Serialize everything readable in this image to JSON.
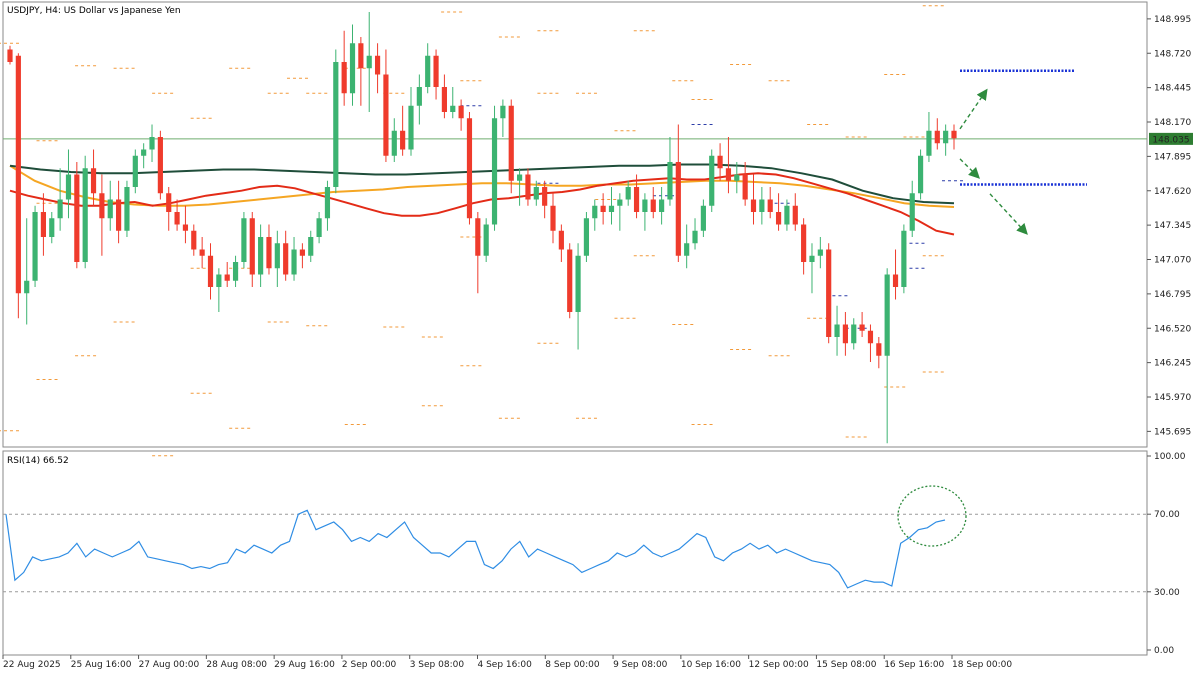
{
  "colors": {
    "bull": "#26a69a",
    "bull_fill": "#3cb371",
    "bear": "#ef3b2c",
    "grid": "#c8c8c8",
    "price_line": "#6fae6f",
    "price_tag_bg": "#2e7d32",
    "ma_fast": "#e32b17",
    "ma_mid": "#f5a623",
    "ma_slow": "#1f4d3a",
    "pivot": "#f29a3b",
    "pivot_blue": "#2d3da8",
    "target": "#1a33d6",
    "arrow": "#2e8b3e",
    "rsi": "#2f8de4",
    "rsi_level": "#9a9a9a"
  },
  "chart_data": [
    {
      "type": "candlestick",
      "title": "USDJPY, H4:  US Dollar vs Japanese Yen",
      "symbol": "USDJPY",
      "timeframe": "H4",
      "ylim": [
        145.57,
        149.13
      ],
      "y_ticks": [
        "148.995",
        "148.720",
        "148.445",
        "148.170",
        "147.895",
        "147.620",
        "147.345",
        "147.070",
        "146.795",
        "146.520",
        "146.245",
        "145.970",
        "145.695"
      ],
      "current_price": 148.035,
      "current_price_label": "148.035",
      "x_ticks": [
        "22 Aug 2025",
        "25 Aug 16:00",
        "27 Aug 00:00",
        "28 Aug 08:00",
        "29 Aug 16:00",
        "2 Sep 00:00",
        "3 Sep 08:00",
        "4 Sep 16:00",
        "8 Sep 00:00",
        "9 Sep 08:00",
        "10 Sep 16:00",
        "12 Sep 00:00",
        "15 Sep 08:00",
        "16 Sep 16:00",
        "18 Sep 00:00"
      ],
      "candles": [
        [
          148.75,
          148.78,
          148.63,
          148.65
        ],
        [
          148.7,
          148.72,
          146.6,
          146.8
        ],
        [
          146.8,
          147.4,
          146.55,
          146.9
        ],
        [
          146.9,
          147.5,
          146.85,
          147.45
        ],
        [
          147.45,
          147.6,
          147.1,
          147.25
        ],
        [
          147.25,
          147.45,
          147.2,
          147.4
        ],
        [
          147.4,
          147.8,
          147.3,
          147.55
        ],
        [
          147.55,
          147.95,
          147.4,
          147.75
        ],
        [
          147.75,
          147.85,
          147.0,
          147.05
        ],
        [
          147.05,
          147.9,
          147.0,
          147.8
        ],
        [
          147.8,
          147.95,
          147.5,
          147.6
        ],
        [
          147.6,
          147.75,
          147.1,
          147.4
        ],
        [
          147.4,
          147.7,
          147.3,
          147.55
        ],
        [
          147.55,
          147.7,
          147.2,
          147.3
        ],
        [
          147.3,
          147.7,
          147.25,
          147.65
        ],
        [
          147.65,
          147.95,
          147.6,
          147.9
        ],
        [
          147.9,
          148.0,
          147.8,
          147.95
        ],
        [
          147.95,
          148.15,
          147.85,
          148.05
        ],
        [
          148.05,
          148.1,
          147.55,
          147.6
        ],
        [
          147.6,
          147.65,
          147.3,
          147.45
        ],
        [
          147.45,
          147.55,
          147.3,
          147.35
        ],
        [
          147.35,
          147.5,
          147.2,
          147.3
        ],
        [
          147.3,
          147.35,
          147.1,
          147.15
        ],
        [
          147.15,
          147.25,
          147.0,
          147.1
        ],
        [
          147.1,
          147.2,
          146.75,
          146.85
        ],
        [
          146.85,
          147.0,
          146.65,
          146.95
        ],
        [
          146.95,
          147.05,
          146.85,
          146.9
        ],
        [
          146.9,
          147.1,
          146.85,
          147.05
        ],
        [
          147.05,
          147.45,
          147.0,
          147.4
        ],
        [
          147.4,
          147.45,
          146.85,
          146.95
        ],
        [
          146.95,
          147.35,
          146.85,
          147.25
        ],
        [
          147.25,
          147.35,
          146.95,
          147.0
        ],
        [
          147.0,
          147.3,
          146.85,
          147.2
        ],
        [
          147.2,
          147.3,
          146.9,
          146.95
        ],
        [
          146.95,
          147.25,
          146.9,
          147.15
        ],
        [
          147.15,
          147.2,
          147.0,
          147.1
        ],
        [
          147.1,
          147.3,
          147.05,
          147.25
        ],
        [
          147.25,
          147.45,
          147.2,
          147.4
        ],
        [
          147.4,
          147.7,
          147.3,
          147.65
        ],
        [
          147.65,
          148.75,
          147.6,
          148.65
        ],
        [
          148.65,
          148.9,
          148.3,
          148.4
        ],
        [
          148.4,
          148.95,
          148.3,
          148.8
        ],
        [
          148.8,
          148.85,
          148.3,
          148.6
        ],
        [
          148.6,
          149.05,
          148.25,
          148.7
        ],
        [
          148.7,
          148.8,
          148.4,
          148.55
        ],
        [
          148.55,
          148.75,
          147.85,
          147.9
        ],
        [
          147.9,
          148.2,
          147.85,
          148.1
        ],
        [
          148.1,
          148.3,
          147.9,
          147.95
        ],
        [
          147.95,
          148.45,
          147.9,
          148.3
        ],
        [
          148.3,
          148.55,
          148.15,
          148.45
        ],
        [
          148.45,
          148.8,
          148.4,
          148.7
        ],
        [
          148.7,
          148.75,
          148.35,
          148.45
        ],
        [
          148.45,
          148.55,
          148.2,
          148.25
        ],
        [
          148.25,
          148.45,
          148.2,
          148.3
        ],
        [
          148.3,
          148.35,
          148.1,
          148.2
        ],
        [
          148.2,
          148.25,
          147.35,
          147.4
        ],
        [
          147.4,
          147.45,
          146.8,
          147.1
        ],
        [
          147.1,
          147.4,
          147.05,
          147.35
        ],
        [
          147.35,
          148.3,
          147.3,
          148.2
        ],
        [
          148.2,
          148.35,
          148.05,
          148.3
        ],
        [
          148.3,
          148.35,
          147.6,
          147.7
        ],
        [
          147.7,
          147.8,
          147.5,
          147.75
        ],
        [
          147.75,
          147.8,
          147.5,
          147.55
        ],
        [
          147.55,
          147.7,
          147.5,
          147.65
        ],
        [
          147.65,
          147.7,
          147.4,
          147.5
        ],
        [
          147.5,
          147.6,
          147.2,
          147.3
        ],
        [
          147.3,
          147.35,
          147.05,
          147.15
        ],
        [
          147.15,
          147.2,
          146.6,
          146.65
        ],
        [
          146.65,
          147.2,
          146.35,
          147.1
        ],
        [
          147.1,
          147.45,
          147.05,
          147.4
        ],
        [
          147.4,
          147.55,
          147.3,
          147.5
        ],
        [
          147.5,
          147.6,
          147.35,
          147.45
        ],
        [
          147.45,
          147.65,
          147.35,
          147.5
        ],
        [
          147.5,
          147.6,
          147.3,
          147.55
        ],
        [
          147.55,
          147.7,
          147.5,
          147.65
        ],
        [
          147.65,
          147.75,
          147.4,
          147.45
        ],
        [
          147.45,
          147.6,
          147.3,
          147.55
        ],
        [
          147.55,
          147.65,
          147.4,
          147.45
        ],
        [
          147.45,
          147.65,
          147.35,
          147.55
        ],
        [
          147.55,
          148.05,
          147.5,
          147.85
        ],
        [
          147.85,
          148.15,
          147.05,
          147.1
        ],
        [
          147.1,
          147.35,
          147.0,
          147.2
        ],
        [
          147.2,
          147.4,
          147.15,
          147.3
        ],
        [
          147.3,
          147.55,
          147.25,
          147.5
        ],
        [
          147.5,
          147.95,
          147.45,
          147.9
        ],
        [
          147.9,
          148.0,
          147.7,
          147.8
        ],
        [
          147.8,
          148.05,
          147.6,
          147.7
        ],
        [
          147.7,
          147.85,
          147.6,
          147.75
        ],
        [
          147.75,
          147.85,
          147.5,
          147.55
        ],
        [
          147.55,
          147.75,
          147.35,
          147.45
        ],
        [
          147.45,
          147.65,
          147.35,
          147.55
        ],
        [
          147.55,
          147.65,
          147.4,
          147.45
        ],
        [
          147.45,
          147.6,
          147.3,
          147.35
        ],
        [
          147.35,
          147.55,
          147.3,
          147.5
        ],
        [
          147.5,
          147.6,
          147.3,
          147.35
        ],
        [
          147.35,
          147.4,
          146.95,
          147.05
        ],
        [
          147.05,
          147.2,
          146.8,
          147.1
        ],
        [
          147.1,
          147.25,
          147.0,
          147.15
        ],
        [
          147.15,
          147.2,
          146.4,
          146.45
        ],
        [
          146.45,
          146.7,
          146.3,
          146.55
        ],
        [
          146.55,
          146.65,
          146.3,
          146.4
        ],
        [
          146.4,
          146.6,
          146.35,
          146.55
        ],
        [
          146.55,
          146.65,
          146.45,
          146.5
        ],
        [
          146.5,
          146.55,
          146.25,
          146.4
        ],
        [
          146.4,
          146.45,
          146.2,
          146.3
        ],
        [
          146.3,
          147.0,
          145.6,
          146.95
        ],
        [
          146.95,
          147.15,
          146.75,
          146.85
        ],
        [
          146.85,
          147.35,
          146.8,
          147.3
        ],
        [
          147.3,
          147.7,
          147.25,
          147.6
        ],
        [
          147.6,
          147.95,
          147.55,
          147.9
        ],
        [
          147.9,
          148.25,
          147.85,
          148.1
        ],
        [
          148.1,
          148.2,
          147.95,
          148.0
        ],
        [
          148.0,
          148.15,
          147.9,
          148.1
        ],
        [
          148.1,
          148.15,
          147.95,
          148.04
        ]
      ],
      "ma_fast": [
        147.62,
        147.58,
        147.55,
        147.52,
        147.5,
        147.5,
        147.52,
        147.53,
        147.5,
        147.52,
        147.55,
        147.58,
        147.6,
        147.62,
        147.65,
        147.66,
        147.64,
        147.6,
        147.56,
        147.52,
        147.48,
        147.44,
        147.42,
        147.42,
        147.44,
        147.48,
        147.52,
        147.55,
        147.56,
        147.58,
        147.6,
        147.61,
        147.63,
        147.66,
        147.68,
        147.7,
        147.71,
        147.72,
        147.71,
        147.71,
        147.73,
        147.75,
        147.76,
        147.75,
        147.72,
        147.68,
        147.64,
        147.6,
        147.55,
        147.5,
        147.45,
        147.38,
        147.3,
        147.27
      ],
      "ma_mid": [
        147.82,
        147.7,
        147.62,
        147.57,
        147.53,
        147.51,
        147.5,
        147.5,
        147.51,
        147.53,
        147.55,
        147.57,
        147.59,
        147.61,
        147.62,
        147.63,
        147.65,
        147.66,
        147.67,
        147.68,
        147.68,
        147.67,
        147.66,
        147.66,
        147.67,
        147.67,
        147.68,
        147.69,
        147.7,
        147.7,
        147.69,
        147.68,
        147.66,
        147.63,
        147.6,
        147.56,
        147.52,
        147.5,
        147.49
      ],
      "ma_slow": [
        147.82,
        147.79,
        147.77,
        147.76,
        147.76,
        147.77,
        147.78,
        147.79,
        147.79,
        147.78,
        147.77,
        147.76,
        147.75,
        147.75,
        147.76,
        147.77,
        147.78,
        147.79,
        147.8,
        147.81,
        147.82,
        147.82,
        147.83,
        147.83,
        147.82,
        147.8,
        147.76,
        147.71,
        147.62,
        147.56,
        147.53,
        147.52
      ],
      "pivots": [
        [
          0,
          148.8
        ],
        [
          0,
          145.7
        ],
        [
          2,
          148.02
        ],
        [
          2,
          147.52
        ],
        [
          2,
          146.11
        ],
        [
          4,
          148.62
        ],
        [
          4,
          146.3
        ],
        [
          6,
          148.6
        ],
        [
          6,
          146.57
        ],
        [
          8,
          148.4
        ],
        [
          8,
          145.5
        ],
        [
          10,
          148.2
        ],
        [
          10,
          147.0
        ],
        [
          10,
          146.0
        ],
        [
          12,
          148.6
        ],
        [
          12,
          147.0
        ],
        [
          12,
          145.72
        ],
        [
          14,
          148.4
        ],
        [
          14,
          146.57
        ],
        [
          15,
          148.52
        ],
        [
          16,
          148.4
        ],
        [
          16,
          146.54
        ],
        [
          18,
          148.6
        ],
        [
          18,
          145.75
        ],
        [
          20,
          148.4
        ],
        [
          20,
          146.53
        ],
        [
          22,
          146.45
        ],
        [
          22,
          145.9
        ],
        [
          23,
          149.05
        ],
        [
          24,
          148.5
        ],
        [
          24,
          147.25
        ],
        [
          24,
          146.22
        ],
        [
          26,
          148.85
        ],
        [
          26,
          145.8
        ],
        [
          28,
          148.9
        ],
        [
          28,
          148.4
        ],
        [
          28,
          146.4
        ],
        [
          30,
          148.4
        ],
        [
          30,
          145.8
        ],
        [
          31,
          147.55
        ],
        [
          32,
          148.1
        ],
        [
          32,
          146.6
        ],
        [
          33,
          148.9
        ],
        [
          33,
          147.1
        ],
        [
          35,
          148.5
        ],
        [
          35,
          146.55
        ],
        [
          36,
          148.35
        ],
        [
          36,
          145.75
        ],
        [
          38,
          148.63
        ],
        [
          38,
          146.35
        ],
        [
          40,
          148.5
        ],
        [
          40,
          146.3
        ],
        [
          42,
          148.15
        ],
        [
          42,
          146.6
        ],
        [
          44,
          148.05
        ],
        [
          44,
          145.65
        ],
        [
          46,
          148.55
        ],
        [
          46,
          146.05
        ],
        [
          47,
          148.05
        ],
        [
          48,
          149.1
        ],
        [
          48,
          146.17
        ],
        [
          48,
          147.1
        ]
      ],
      "pivots_blue": [
        [
          24,
          148.3
        ],
        [
          28,
          147.68
        ],
        [
          34,
          147.58
        ],
        [
          36,
          148.15
        ],
        [
          40,
          147.52
        ],
        [
          43,
          146.78
        ],
        [
          44,
          146.52
        ],
        [
          47,
          147.2
        ],
        [
          47,
          147.0
        ],
        [
          49,
          147.7
        ]
      ],
      "targets": [
        148.58,
        147.67
      ]
    },
    {
      "type": "line",
      "title": "RSI(14) 66.52",
      "ylim": [
        0,
        100
      ],
      "y_ticks": [
        "100.00",
        "70.00",
        "30.00",
        "0.00"
      ],
      "levels": [
        70,
        30
      ],
      "values": [
        70,
        36,
        40,
        48,
        46,
        47,
        48,
        50,
        55,
        48,
        52,
        50,
        48,
        50,
        52,
        56,
        48,
        47,
        46,
        45,
        44,
        42,
        43,
        42,
        44,
        45,
        52,
        50,
        54,
        52,
        50,
        54,
        56,
        70,
        72,
        62,
        64,
        66,
        62,
        56,
        58,
        56,
        60,
        58,
        62,
        66,
        58,
        54,
        50,
        50,
        48,
        52,
        56,
        56,
        44,
        42,
        46,
        52,
        56,
        48,
        52,
        50,
        48,
        46,
        44,
        40,
        42,
        44,
        46,
        50,
        48,
        50,
        54,
        50,
        48,
        50,
        52,
        56,
        60,
        58,
        48,
        46,
        50,
        52,
        55,
        52,
        54,
        50,
        52,
        50,
        48,
        46,
        45,
        44,
        40,
        32,
        34,
        36,
        35,
        35,
        33,
        55,
        58,
        62,
        63,
        66,
        67
      ]
    }
  ]
}
